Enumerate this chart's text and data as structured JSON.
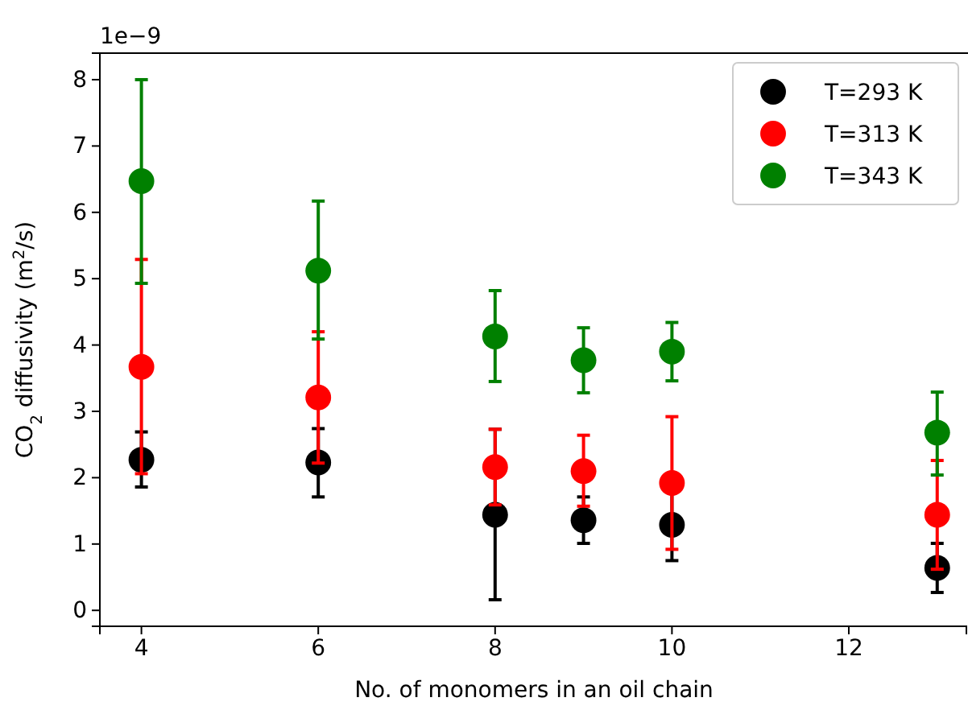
{
  "chart_data": {
    "type": "scatter",
    "xlabel": "No. of monomers in an oil chain",
    "ylabel": "CO$_{2}$ diffusivity (m$^{2}$/s)",
    "annotations": [
      "1e−9"
    ],
    "x": [
      4,
      6,
      8,
      9,
      10,
      13
    ],
    "marker": "circle",
    "legend": "top right",
    "grid": false,
    "xlim": [
      3.53,
      13.33
    ],
    "xticks": [
      4,
      6,
      8,
      10,
      12
    ],
    "ylim": [
      -0.24,
      8.4
    ],
    "yticks": [
      0,
      1,
      2,
      3,
      4,
      5,
      6,
      7,
      8
    ],
    "series": [
      {
        "name": "T=293 K",
        "color": "#000000",
        "values": [
          2.27,
          2.23,
          1.44,
          1.36,
          1.29,
          0.64
        ],
        "errors": [
          [
            1.86,
            2.69
          ],
          [
            1.71,
            2.74
          ],
          [
            0.16,
            2.73
          ],
          [
            1.01,
            1.71
          ],
          [
            0.75,
            1.82
          ],
          [
            0.27,
            1.01
          ]
        ]
      },
      {
        "name": "T=313 K",
        "color": "#ff0000",
        "values": [
          3.67,
          3.21,
          2.16,
          2.1,
          1.92,
          1.44
        ],
        "errors": [
          [
            2.06,
            5.29
          ],
          [
            2.22,
            4.2
          ],
          [
            1.59,
            2.73
          ],
          [
            1.57,
            2.64
          ],
          [
            0.92,
            2.92
          ],
          [
            0.62,
            2.26
          ]
        ]
      },
      {
        "name": "T=343 K",
        "color": "#008000",
        "values": [
          6.47,
          5.12,
          4.13,
          3.77,
          3.9,
          2.68
        ],
        "errors": [
          [
            4.93,
            8.0
          ],
          [
            4.09,
            6.17
          ],
          [
            3.45,
            4.82
          ],
          [
            3.28,
            4.26
          ],
          [
            3.46,
            4.34
          ],
          [
            2.04,
            3.29
          ]
        ]
      }
    ]
  }
}
